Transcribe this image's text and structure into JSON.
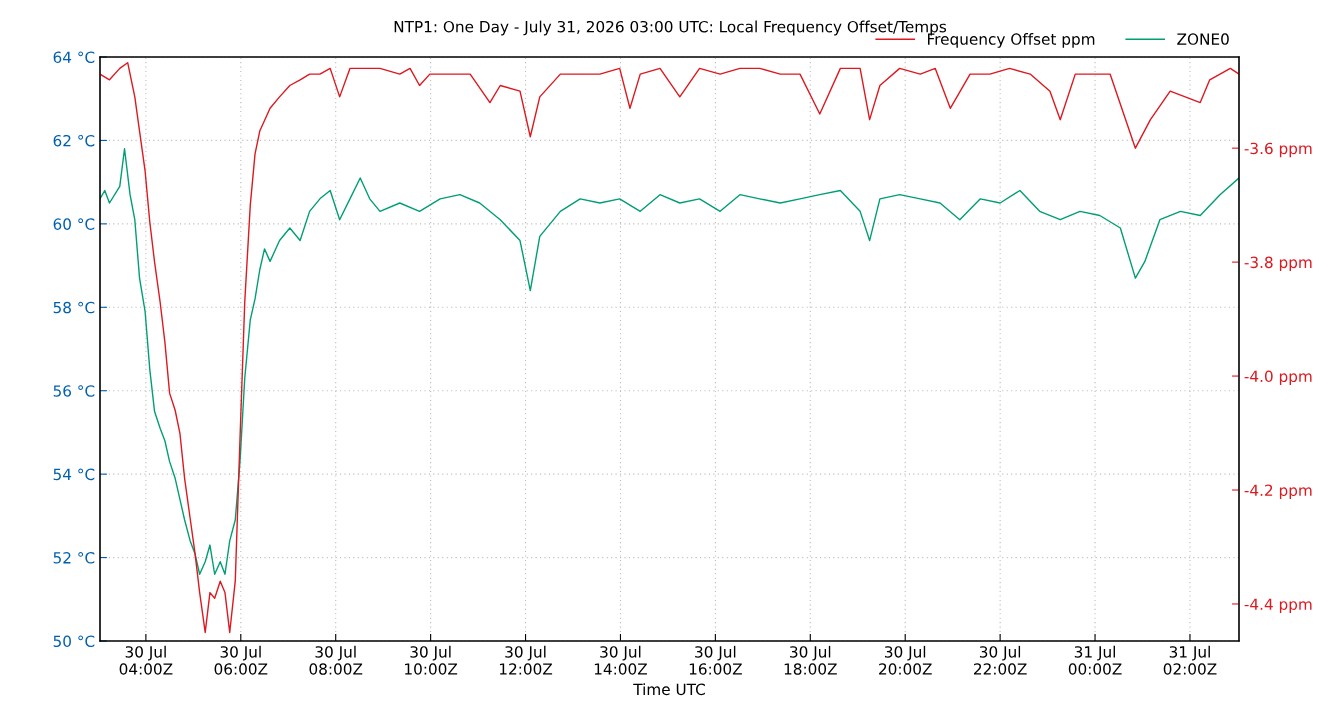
{
  "chart_data": {
    "type": "line",
    "title": "NTP1: One Day - July 31, 2026 03:00 UTC: Local Frequency Offset/Temps",
    "xlabel": "Time UTC",
    "xlim": [
      "2026-07-30T03:02",
      "2026-07-31T03:02"
    ],
    "xticks": [
      {
        "value": "2026-07-30T04:00",
        "label": "30 Jul\n04:00Z"
      },
      {
        "value": "2026-07-30T06:00",
        "label": "30 Jul\n06:00Z"
      },
      {
        "value": "2026-07-30T08:00",
        "label": "30 Jul\n08:00Z"
      },
      {
        "value": "2026-07-30T10:00",
        "label": "30 Jul\n10:00Z"
      },
      {
        "value": "2026-07-30T12:00",
        "label": "30 Jul\n12:00Z"
      },
      {
        "value": "2026-07-30T14:00",
        "label": "30 Jul\n14:00Z"
      },
      {
        "value": "2026-07-30T16:00",
        "label": "30 Jul\n16:00Z"
      },
      {
        "value": "2026-07-30T18:00",
        "label": "30 Jul\n18:00Z"
      },
      {
        "value": "2026-07-30T20:00",
        "label": "30 Jul\n20:00Z"
      },
      {
        "value": "2026-07-30T22:00",
        "label": "30 Jul\n22:00Z"
      },
      {
        "value": "2026-07-31T00:00",
        "label": "31 Jul\n00:00Z"
      },
      {
        "value": "2026-07-31T02:00",
        "label": "31 Jul\n02:00Z"
      }
    ],
    "ylim": [
      50,
      64
    ],
    "yticks": [
      {
        "value": 50,
        "label": "50 °C"
      },
      {
        "value": 52,
        "label": "52 °C"
      },
      {
        "value": 54,
        "label": "54 °C"
      },
      {
        "value": 56,
        "label": "56 °C"
      },
      {
        "value": 58,
        "label": "58 °C"
      },
      {
        "value": 60,
        "label": "60 °C"
      },
      {
        "value": 62,
        "label": "62 °C"
      },
      {
        "value": 64,
        "label": "64 °C"
      }
    ],
    "y2lim": [
      -4.465,
      -3.44
    ],
    "y2ticks": [
      {
        "value": -4.4,
        "label": "-4.4 ppm"
      },
      {
        "value": -4.2,
        "label": "-4.2 ppm"
      },
      {
        "value": -4.0,
        "label": "-4.0 ppm"
      },
      {
        "value": -3.8,
        "label": "-3.8 ppm"
      },
      {
        "value": -3.6,
        "label": "-3.6 ppm"
      }
    ],
    "grid": true,
    "legend": "top right",
    "line_style": "solid",
    "series": [
      {
        "name": "Frequency Offset ppm",
        "color": "#dd181f",
        "axis": "y2",
        "x": [
          "2026-07-30T03:02",
          "2026-07-30T03:14",
          "2026-07-30T03:27",
          "2026-07-30T03:37",
          "2026-07-30T03:46",
          "2026-07-30T03:52",
          "2026-07-30T03:59",
          "2026-07-30T04:05",
          "2026-07-30T04:11",
          "2026-07-30T04:18",
          "2026-07-30T04:24",
          "2026-07-30T04:30",
          "2026-07-30T04:37",
          "2026-07-30T04:43",
          "2026-07-30T04:49",
          "2026-07-30T04:56",
          "2026-07-30T05:02",
          "2026-07-30T05:08",
          "2026-07-30T05:15",
          "2026-07-30T05:21",
          "2026-07-30T05:27",
          "2026-07-30T05:34",
          "2026-07-30T05:40",
          "2026-07-30T05:46",
          "2026-07-30T05:53",
          "2026-07-30T05:59",
          "2026-07-30T06:05",
          "2026-07-30T06:12",
          "2026-07-30T06:18",
          "2026-07-30T06:24",
          "2026-07-30T06:37",
          "2026-07-30T06:49",
          "2026-07-30T07:02",
          "2026-07-30T07:15",
          "2026-07-30T07:27",
          "2026-07-30T07:40",
          "2026-07-30T07:53",
          "2026-07-30T08:05",
          "2026-07-30T08:18",
          "2026-07-30T08:31",
          "2026-07-30T08:56",
          "2026-07-30T09:21",
          "2026-07-30T09:34",
          "2026-07-30T09:46",
          "2026-07-30T09:59",
          "2026-07-30T10:24",
          "2026-07-30T10:50",
          "2026-07-30T11:15",
          "2026-07-30T11:28",
          "2026-07-30T11:53",
          "2026-07-30T12:06",
          "2026-07-30T12:18",
          "2026-07-30T12:44",
          "2026-07-30T13:09",
          "2026-07-30T13:34",
          "2026-07-30T13:59",
          "2026-07-30T14:12",
          "2026-07-30T14:25",
          "2026-07-30T14:50",
          "2026-07-30T15:15",
          "2026-07-30T15:40",
          "2026-07-30T16:06",
          "2026-07-30T16:31",
          "2026-07-30T16:56",
          "2026-07-30T17:22",
          "2026-07-30T17:47",
          "2026-07-30T18:12",
          "2026-07-30T18:38",
          "2026-07-30T19:03",
          "2026-07-30T19:15",
          "2026-07-30T19:28",
          "2026-07-30T19:53",
          "2026-07-30T20:19",
          "2026-07-30T20:38",
          "2026-07-30T20:57",
          "2026-07-30T21:22",
          "2026-07-30T21:47",
          "2026-07-30T22:12",
          "2026-07-30T22:38",
          "2026-07-30T23:03",
          "2026-07-30T23:16",
          "2026-07-30T23:35",
          "2026-07-30T23:54",
          "2026-07-31T00:19",
          "2026-07-31T00:51",
          "2026-07-31T01:10",
          "2026-07-31T01:35",
          "2026-07-31T02:13",
          "2026-07-31T02:25",
          "2026-07-31T02:51",
          "2026-07-31T03:02"
        ],
        "values": [
          -3.47,
          -3.48,
          -3.46,
          -3.45,
          -3.51,
          -3.57,
          -3.64,
          -3.73,
          -3.8,
          -3.87,
          -3.94,
          -4.03,
          -4.06,
          -4.1,
          -4.18,
          -4.25,
          -4.31,
          -4.38,
          -4.45,
          -4.38,
          -4.39,
          -4.36,
          -4.38,
          -4.45,
          -4.36,
          -4.11,
          -3.87,
          -3.7,
          -3.61,
          -3.57,
          -3.53,
          -3.51,
          -3.49,
          -3.48,
          -3.47,
          -3.47,
          -3.46,
          -3.51,
          -3.46,
          -3.46,
          -3.46,
          -3.47,
          -3.46,
          -3.49,
          -3.47,
          -3.47,
          -3.47,
          -3.52,
          -3.49,
          -3.5,
          -3.58,
          -3.51,
          -3.47,
          -3.47,
          -3.47,
          -3.46,
          -3.53,
          -3.47,
          -3.46,
          -3.51,
          -3.46,
          -3.47,
          -3.46,
          -3.46,
          -3.47,
          -3.47,
          -3.54,
          -3.46,
          -3.46,
          -3.55,
          -3.49,
          -3.46,
          -3.47,
          -3.46,
          -3.53,
          -3.47,
          -3.47,
          -3.46,
          -3.47,
          -3.5,
          -3.55,
          -3.47,
          -3.47,
          -3.47,
          -3.6,
          -3.55,
          -3.5,
          -3.52,
          -3.48,
          -3.46,
          -3.47
        ]
      },
      {
        "name": "ZONE0",
        "color": "#009e73",
        "axis": "y",
        "x": [
          "2026-07-30T03:02",
          "2026-07-30T03:08",
          "2026-07-30T03:14",
          "2026-07-30T03:27",
          "2026-07-30T03:33",
          "2026-07-30T03:40",
          "2026-07-30T03:46",
          "2026-07-30T03:52",
          "2026-07-30T03:59",
          "2026-07-30T04:05",
          "2026-07-30T04:11",
          "2026-07-30T04:18",
          "2026-07-30T04:24",
          "2026-07-30T04:30",
          "2026-07-30T04:37",
          "2026-07-30T04:43",
          "2026-07-30T04:49",
          "2026-07-30T04:56",
          "2026-07-30T05:02",
          "2026-07-30T05:08",
          "2026-07-30T05:15",
          "2026-07-30T05:21",
          "2026-07-30T05:27",
          "2026-07-30T05:34",
          "2026-07-30T05:40",
          "2026-07-30T05:46",
          "2026-07-30T05:53",
          "2026-07-30T05:59",
          "2026-07-30T06:05",
          "2026-07-30T06:12",
          "2026-07-30T06:18",
          "2026-07-30T06:24",
          "2026-07-30T06:30",
          "2026-07-30T06:37",
          "2026-07-30T06:49",
          "2026-07-30T07:02",
          "2026-07-30T07:15",
          "2026-07-30T07:27",
          "2026-07-30T07:40",
          "2026-07-30T07:53",
          "2026-07-30T08:05",
          "2026-07-30T08:18",
          "2026-07-30T08:31",
          "2026-07-30T08:43",
          "2026-07-30T08:56",
          "2026-07-30T09:21",
          "2026-07-30T09:46",
          "2026-07-30T10:12",
          "2026-07-30T10:37",
          "2026-07-30T11:02",
          "2026-07-30T11:28",
          "2026-07-30T11:53",
          "2026-07-30T12:06",
          "2026-07-30T12:18",
          "2026-07-30T12:44",
          "2026-07-30T13:09",
          "2026-07-30T13:34",
          "2026-07-30T13:59",
          "2026-07-30T14:25",
          "2026-07-30T14:50",
          "2026-07-30T15:15",
          "2026-07-30T15:40",
          "2026-07-30T16:06",
          "2026-07-30T16:31",
          "2026-07-30T16:56",
          "2026-07-30T17:22",
          "2026-07-30T17:47",
          "2026-07-30T18:12",
          "2026-07-30T18:38",
          "2026-07-30T19:03",
          "2026-07-30T19:15",
          "2026-07-30T19:28",
          "2026-07-30T19:53",
          "2026-07-30T20:19",
          "2026-07-30T20:44",
          "2026-07-30T21:09",
          "2026-07-30T21:35",
          "2026-07-30T22:00",
          "2026-07-30T22:25",
          "2026-07-30T22:50",
          "2026-07-30T23:16",
          "2026-07-30T23:41",
          "2026-07-31T00:06",
          "2026-07-31T00:32",
          "2026-07-31T00:51",
          "2026-07-31T01:03",
          "2026-07-31T01:22",
          "2026-07-31T01:48",
          "2026-07-31T02:13",
          "2026-07-31T02:38",
          "2026-07-31T03:02"
        ],
        "values": [
          60.6,
          60.8,
          60.5,
          60.9,
          61.8,
          60.7,
          60.1,
          58.7,
          57.9,
          56.5,
          55.5,
          55.1,
          54.8,
          54.3,
          53.9,
          53.4,
          52.9,
          52.4,
          52.1,
          51.6,
          51.9,
          52.3,
          51.6,
          51.9,
          51.6,
          52.4,
          52.9,
          54.3,
          56.3,
          57.7,
          58.2,
          58.9,
          59.4,
          59.1,
          59.6,
          59.9,
          59.6,
          60.3,
          60.6,
          60.8,
          60.1,
          60.6,
          61.1,
          60.6,
          60.3,
          60.5,
          60.3,
          60.6,
          60.7,
          60.5,
          60.1,
          59.6,
          58.4,
          59.7,
          60.3,
          60.6,
          60.5,
          60.6,
          60.3,
          60.7,
          60.5,
          60.6,
          60.3,
          60.7,
          60.6,
          60.5,
          60.6,
          60.7,
          60.8,
          60.3,
          59.6,
          60.6,
          60.7,
          60.6,
          60.5,
          60.1,
          60.6,
          60.5,
          60.8,
          60.3,
          60.1,
          60.3,
          60.2,
          59.9,
          58.7,
          59.1,
          60.1,
          60.3,
          60.2,
          60.7,
          61.1
        ]
      }
    ]
  }
}
